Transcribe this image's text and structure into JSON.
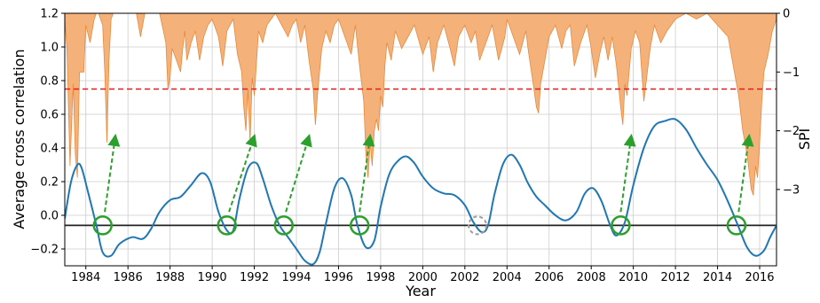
{
  "chart_data": {
    "type": "line",
    "title": "",
    "xlabel": "Year",
    "ylabel": "Average cross correlation",
    "y2label": "SPI",
    "xlim": [
      1983.0,
      2016.8
    ],
    "ylim": [
      -0.3,
      1.2
    ],
    "y2lim": [
      -4.3,
      0
    ],
    "grid": true,
    "x_ticks": [
      1984,
      1986,
      1988,
      1990,
      1992,
      1994,
      1996,
      1998,
      2000,
      2002,
      2004,
      2006,
      2008,
      2010,
      2012,
      2014,
      2016
    ],
    "x_tick_labels": [
      "1984",
      "1986",
      "1988",
      "1990",
      "1992",
      "1994",
      "1996",
      "1998",
      "2000",
      "2002",
      "2004",
      "2006",
      "2008",
      "2010",
      "2012",
      "2014",
      "2016"
    ],
    "y_ticks": [
      -0.2,
      0.0,
      0.2,
      0.4,
      0.6,
      0.8,
      1.0,
      1.2
    ],
    "y_tick_labels": [
      "−0.2",
      "0.0",
      "0.2",
      "0.4",
      "0.6",
      "0.8",
      "1.0",
      "1.2"
    ],
    "y2_ticks": [
      0,
      -1,
      -2,
      -3
    ],
    "y2_tick_labels": [
      "0",
      "−1",
      "−2",
      "−3"
    ],
    "colors": {
      "correlation": "#1f77b4",
      "spi_fill": "#f4b27a",
      "spi_edge": "#e8893a",
      "threshold": "#e41a1c",
      "baseline": "#222222",
      "marker": "#2ca02c",
      "marker_dashed": "#9e9e9e",
      "arrow": "#2ca02c",
      "grid": "#cccccc"
    },
    "series": [
      {
        "axis": "left",
        "style": "line",
        "x": [
          1983.0,
          1983.3,
          1983.6,
          1983.8,
          1984.1,
          1984.5,
          1984.8,
          1985.2,
          1985.6,
          1986.2,
          1986.7,
          1987.1,
          1987.5,
          1988.0,
          1988.5,
          1989.0,
          1989.5,
          1989.9,
          1990.3,
          1990.7,
          1991.0,
          1991.3,
          1991.7,
          1992.1,
          1992.4,
          1992.8,
          1993.2,
          1993.6,
          1994.0,
          1994.4,
          1994.8,
          1995.1,
          1995.4,
          1995.8,
          1996.2,
          1996.6,
          1996.9,
          1997.3,
          1997.7,
          1998.0,
          1998.4,
          1998.8,
          1999.2,
          1999.6,
          2000.0,
          2000.5,
          2001.0,
          2001.5,
          2002.0,
          2002.4,
          2002.8,
          2003.1,
          2003.4,
          2003.8,
          2004.2,
          2004.6,
          2005.0,
          2005.4,
          2005.8,
          2006.3,
          2006.8,
          2007.3,
          2007.7,
          2008.1,
          2008.5,
          2008.9,
          2009.2,
          2009.6,
          2010.0,
          2010.5,
          2011.0,
          2011.5,
          2012.0,
          2012.5,
          2013.0,
          2013.5,
          2014.0,
          2014.5,
          2015.0,
          2015.4,
          2015.8,
          2016.2,
          2016.5,
          2016.8
        ],
        "y": [
          -0.02,
          0.2,
          0.3,
          0.28,
          0.14,
          -0.06,
          -0.22,
          -0.24,
          -0.17,
          -0.13,
          -0.14,
          -0.08,
          0.02,
          0.09,
          0.11,
          0.18,
          0.25,
          0.2,
          0.02,
          -0.09,
          -0.09,
          0.1,
          0.28,
          0.31,
          0.22,
          0.06,
          -0.06,
          -0.13,
          -0.2,
          -0.27,
          -0.29,
          -0.22,
          -0.05,
          0.16,
          0.22,
          0.12,
          -0.06,
          -0.19,
          -0.15,
          0.05,
          0.24,
          0.32,
          0.35,
          0.31,
          0.23,
          0.16,
          0.13,
          0.12,
          0.06,
          -0.04,
          -0.1,
          -0.06,
          0.12,
          0.3,
          0.36,
          0.3,
          0.19,
          0.11,
          0.06,
          0.0,
          -0.03,
          0.02,
          0.13,
          0.16,
          0.08,
          -0.06,
          -0.12,
          -0.04,
          0.18,
          0.4,
          0.53,
          0.56,
          0.57,
          0.51,
          0.4,
          0.3,
          0.21,
          0.08,
          -0.07,
          -0.19,
          -0.24,
          -0.21,
          -0.13,
          -0.06
        ]
      },
      {
        "axis": "right",
        "style": "area",
        "x": [
          1983.0,
          1983.1,
          1983.25,
          1983.4,
          1983.5,
          1983.6,
          1983.7,
          1983.9,
          1984.0,
          1984.2,
          1984.4,
          1984.5,
          1984.6,
          1984.8,
          1984.9,
          1985.0,
          1985.1,
          1985.2,
          1985.3,
          1985.5,
          1986.0,
          1986.4,
          1986.6,
          1986.8,
          1987.0,
          1987.5,
          1987.8,
          1987.9,
          1988.0,
          1988.1,
          1988.3,
          1988.5,
          1988.6,
          1988.7,
          1988.8,
          1989.0,
          1989.2,
          1989.4,
          1989.6,
          1989.8,
          1990.0,
          1990.3,
          1990.5,
          1990.7,
          1991.0,
          1991.2,
          1991.4,
          1991.5,
          1991.6,
          1991.7,
          1991.8,
          1991.9,
          1992.0,
          1992.2,
          1992.4,
          1992.6,
          1992.8,
          1993.0,
          1993.3,
          1993.6,
          1993.8,
          1994.0,
          1994.2,
          1994.4,
          1994.6,
          1994.8,
          1994.9,
          1995.0,
          1995.1,
          1995.2,
          1995.4,
          1995.6,
          1995.8,
          1996.0,
          1996.3,
          1996.6,
          1996.8,
          1997.0,
          1997.2,
          1997.3,
          1997.4,
          1997.5,
          1997.6,
          1997.7,
          1997.8,
          1997.9,
          1998.0,
          1998.1,
          1998.2,
          1998.3,
          1998.5,
          1998.7,
          1999.0,
          1999.3,
          1999.6,
          2000.0,
          2000.3,
          2000.5,
          2000.7,
          2001.0,
          2001.3,
          2001.5,
          2001.7,
          2002.0,
          2002.3,
          2002.5,
          2002.7,
          2003.0,
          2003.3,
          2003.6,
          2003.9,
          2004.0,
          2004.3,
          2004.6,
          2004.9,
          2005.0,
          2005.2,
          2005.4,
          2005.5,
          2005.6,
          2005.8,
          2006.0,
          2006.3,
          2006.6,
          2006.8,
          2007.0,
          2007.2,
          2007.5,
          2007.8,
          2008.0,
          2008.2,
          2008.4,
          2008.6,
          2008.8,
          2009.0,
          2009.2,
          2009.4,
          2009.5,
          2009.6,
          2009.7,
          2009.9,
          2010.1,
          2010.3,
          2010.5,
          2010.8,
          2011.0,
          2011.3,
          2011.6,
          2012.0,
          2012.5,
          2013.0,
          2013.5,
          2014.0,
          2014.5,
          2014.8,
          2015.0,
          2015.2,
          2015.4,
          2015.5,
          2015.6,
          2015.7,
          2015.8,
          2015.9,
          2016.0,
          2016.1,
          2016.2,
          2016.4,
          2016.6,
          2016.8
        ],
        "y": [
          -0.1,
          -0.6,
          -2.6,
          -1.2,
          -2.4,
          -2.8,
          -1.0,
          -1.0,
          -0.2,
          -0.5,
          -0.1,
          0.0,
          0.0,
          -0.2,
          -1.0,
          -2.2,
          -0.8,
          -0.1,
          0.0,
          0.0,
          0.0,
          0.0,
          -0.4,
          0.0,
          0.0,
          0.0,
          -0.5,
          -1.3,
          -1.1,
          -0.6,
          -0.8,
          -1.0,
          -0.6,
          -0.3,
          -0.8,
          -0.5,
          -0.3,
          -0.8,
          -0.4,
          -0.2,
          -0.1,
          -0.4,
          -0.9,
          -0.3,
          -0.1,
          -0.7,
          -1.0,
          -1.6,
          -2.0,
          -1.3,
          -2.2,
          -1.1,
          -1.4,
          -0.3,
          -0.5,
          -0.2,
          -0.1,
          0.0,
          -0.2,
          -0.4,
          -0.2,
          -0.1,
          -0.5,
          -0.2,
          -0.8,
          -1.3,
          -1.9,
          -1.4,
          -1.0,
          -0.6,
          -0.3,
          -0.5,
          -0.2,
          -0.1,
          -0.4,
          -0.7,
          -0.2,
          -0.9,
          -1.5,
          -2.4,
          -2.8,
          -2.2,
          -2.6,
          -2.0,
          -1.8,
          -2.0,
          -1.4,
          -1.6,
          -0.9,
          -0.5,
          -0.8,
          -0.3,
          -0.6,
          -0.4,
          -0.2,
          -0.7,
          -0.4,
          -1.0,
          -0.5,
          -0.2,
          -0.6,
          -0.9,
          -0.4,
          -0.2,
          -0.5,
          -0.3,
          -0.8,
          -0.5,
          -0.2,
          -0.8,
          -0.4,
          -0.1,
          -0.4,
          -0.7,
          -0.3,
          -0.6,
          -1.1,
          -1.6,
          -1.7,
          -1.2,
          -0.8,
          -0.4,
          -0.2,
          -0.6,
          -0.3,
          -0.2,
          -0.9,
          -0.5,
          -0.2,
          -0.6,
          -1.1,
          -0.7,
          -0.4,
          -0.8,
          -0.4,
          -0.9,
          -1.6,
          -1.9,
          -1.2,
          -1.4,
          -0.6,
          -0.3,
          -0.5,
          -1.5,
          -0.6,
          -0.2,
          -0.5,
          -0.3,
          -0.1,
          0.0,
          -0.1,
          0.0,
          -0.2,
          -0.4,
          -1.0,
          -1.4,
          -2.0,
          -2.4,
          -2.7,
          -3.0,
          -3.1,
          -2.6,
          -2.8,
          -2.2,
          -1.5,
          -1.0,
          -0.7,
          -0.3,
          -0.1
        ]
      },
      {
        "axis": "left",
        "style": "hline",
        "y": -0.06
      },
      {
        "axis": "left",
        "style": "dashed-hline",
        "y": 0.75
      }
    ],
    "annotations": {
      "circles": [
        {
          "x": 1984.8,
          "y": -0.06,
          "style": "solid"
        },
        {
          "x": 1990.7,
          "y": -0.06,
          "style": "solid"
        },
        {
          "x": 1993.4,
          "y": -0.06,
          "style": "solid"
        },
        {
          "x": 1997.0,
          "y": -0.06,
          "style": "solid"
        },
        {
          "x": 2002.6,
          "y": -0.06,
          "style": "dashed"
        },
        {
          "x": 2009.4,
          "y": -0.06,
          "style": "solid"
        },
        {
          "x": 2014.9,
          "y": -0.06,
          "style": "solid"
        }
      ],
      "arrows": [
        {
          "x1": 1984.9,
          "y1": 0.02,
          "x2": 1985.4,
          "y2": 0.47
        },
        {
          "x1": 1990.8,
          "y1": 0.02,
          "x2": 1992.0,
          "y2": 0.47
        },
        {
          "x1": 1993.5,
          "y1": 0.02,
          "x2": 1994.6,
          "y2": 0.47
        },
        {
          "x1": 1997.0,
          "y1": 0.02,
          "x2": 1997.5,
          "y2": 0.47
        },
        {
          "x1": 2009.4,
          "y1": 0.02,
          "x2": 2009.9,
          "y2": 0.47
        },
        {
          "x1": 2015.0,
          "y1": 0.02,
          "x2": 2015.5,
          "y2": 0.47
        }
      ]
    }
  }
}
